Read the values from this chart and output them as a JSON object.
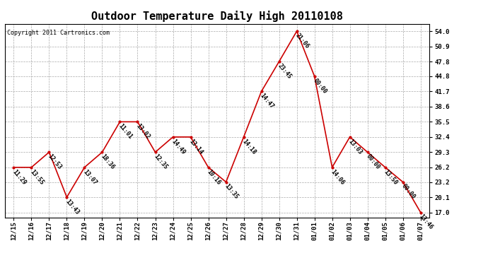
{
  "title": "Outdoor Temperature Daily High 20110108",
  "copyright": "Copyright 2011 Cartronics.com",
  "dates": [
    "12/15",
    "12/16",
    "12/17",
    "12/18",
    "12/19",
    "12/20",
    "12/21",
    "12/22",
    "12/23",
    "12/24",
    "12/25",
    "12/26",
    "12/27",
    "12/28",
    "12/29",
    "12/30",
    "12/31",
    "01/01",
    "01/02",
    "01/03",
    "01/04",
    "01/05",
    "01/06",
    "01/07"
  ],
  "temps": [
    26.2,
    26.2,
    29.3,
    20.1,
    26.2,
    29.3,
    35.5,
    35.5,
    29.3,
    32.4,
    32.4,
    26.2,
    23.2,
    32.4,
    41.7,
    47.8,
    54.0,
    44.8,
    26.2,
    32.4,
    29.3,
    26.2,
    23.2,
    17.0
  ],
  "times": [
    "11:29",
    "13:55",
    "12:53",
    "13:43",
    "13:07",
    "18:36",
    "11:01",
    "13:02",
    "12:35",
    "14:49",
    "13:14",
    "10:16",
    "13:35",
    "14:18",
    "14:47",
    "23:45",
    "21:06",
    "00:00",
    "14:06",
    "13:03",
    "00:00",
    "13:50",
    "00:00",
    "13:46"
  ],
  "yticks": [
    17.0,
    20.1,
    23.2,
    26.2,
    29.3,
    32.4,
    35.5,
    38.6,
    41.7,
    44.8,
    47.8,
    50.9,
    54.0
  ],
  "ylim": [
    16.0,
    55.5
  ],
  "line_color": "#cc0000",
  "marker_color": "#cc0000",
  "bg_color": "#ffffff",
  "grid_color": "#aaaaaa",
  "title_fontsize": 11,
  "label_fontsize": 6,
  "tick_fontsize": 6.5,
  "copyright_fontsize": 6
}
